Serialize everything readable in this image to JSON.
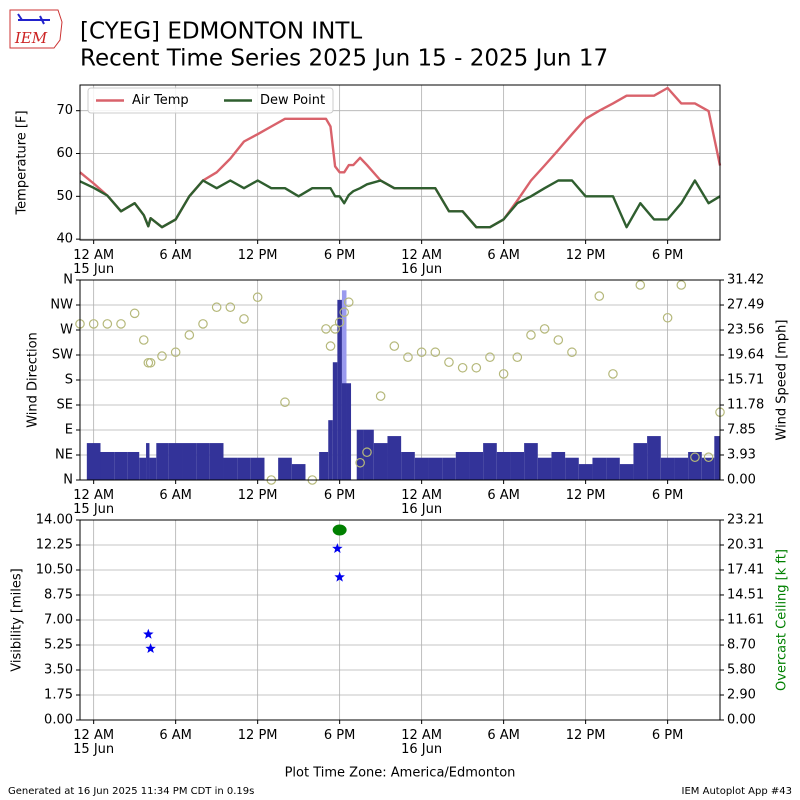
{
  "logo": "IEM",
  "title": "[CYEG] EDMONTON INTL",
  "subtitle": "Recent Time Series 2025 Jun 15 - 2025 Jun 17",
  "xlabel": "Plot Time Zone: America/Edmonton",
  "footer_left": "Generated at 16 Jun 2025 11:34 PM CDT in 0.19s",
  "footer_right": "IEM Autoplot App #43",
  "chart_data": [
    {
      "type": "line",
      "ylabel": "Temperature [F]",
      "grid": true,
      "legend": "upper left",
      "xlim": [
        "2025-06-14 23:00",
        "2025-06-16 21:50"
      ],
      "xticks": [
        {
          "value": "2025-06-15 00:00",
          "label": "12 AM\n15 Jun"
        },
        {
          "value": "2025-06-15 06:00",
          "label": "6 AM"
        },
        {
          "value": "2025-06-15 12:00",
          "label": "12 PM"
        },
        {
          "value": "2025-06-15 18:00",
          "label": "6 PM"
        },
        {
          "value": "2025-06-16 00:00",
          "label": "12 AM\n16 Jun"
        },
        {
          "value": "2025-06-16 06:00",
          "label": "6 AM"
        },
        {
          "value": "2025-06-16 12:00",
          "label": "12 PM"
        },
        {
          "value": "2025-06-16 18:00",
          "label": "6 PM"
        }
      ],
      "ylim": [
        39.8,
        76.0
      ],
      "yticks": [
        40,
        50,
        60,
        70
      ],
      "x": [
        "2025-06-14 23:00",
        "2025-06-15 00:00",
        "2025-06-15 01:00",
        "2025-06-15 02:00",
        "2025-06-15 03:00",
        "2025-06-15 03:40",
        "2025-06-15 04:00",
        "2025-06-15 04:10",
        "2025-06-15 05:00",
        "2025-06-15 06:00",
        "2025-06-15 07:00",
        "2025-06-15 08:00",
        "2025-06-15 09:00",
        "2025-06-15 10:00",
        "2025-06-15 11:00",
        "2025-06-15 12:00",
        "2025-06-15 13:00",
        "2025-06-15 14:00",
        "2025-06-15 15:00",
        "2025-06-15 16:00",
        "2025-06-15 17:00",
        "2025-06-15 17:20",
        "2025-06-15 17:40",
        "2025-06-15 18:00",
        "2025-06-15 18:20",
        "2025-06-15 18:40",
        "2025-06-15 19:00",
        "2025-06-15 19:30",
        "2025-06-15 20:00",
        "2025-06-15 21:00",
        "2025-06-15 22:00",
        "2025-06-15 23:00",
        "2025-06-16 00:00",
        "2025-06-16 01:00",
        "2025-06-16 02:00",
        "2025-06-16 03:00",
        "2025-06-16 04:00",
        "2025-06-16 05:00",
        "2025-06-16 06:00",
        "2025-06-16 07:00",
        "2025-06-16 08:00",
        "2025-06-16 09:00",
        "2025-06-16 10:00",
        "2025-06-16 11:00",
        "2025-06-16 12:00",
        "2025-06-16 13:00",
        "2025-06-16 14:00",
        "2025-06-16 15:00",
        "2025-06-16 16:00",
        "2025-06-16 17:00",
        "2025-06-16 18:00",
        "2025-06-16 19:00",
        "2025-06-16 20:00",
        "2025-06-16 21:00",
        "2025-06-16 21:50"
      ],
      "series": [
        {
          "name": "Air Temp",
          "color": "#d9626b",
          "values": [
            55.6,
            53,
            50.2,
            46.5,
            48.4,
            45.6,
            43,
            44.9,
            42.8,
            44.6,
            50,
            53.7,
            55.6,
            58.8,
            62.8,
            64.5,
            66.3,
            68.1,
            68.1,
            68.1,
            68.1,
            66.3,
            57,
            55.6,
            55.6,
            57.3,
            57.3,
            59,
            57.3,
            53.7,
            51.9,
            51.9,
            51.9,
            51.9,
            46.5,
            46.5,
            42.8,
            42.8,
            44.6,
            49,
            53.7,
            57.2,
            60.8,
            64.5,
            68.1,
            70,
            71.7,
            73.5,
            73.5,
            73.5,
            75.3,
            71.7,
            71.7,
            69.9,
            57.2
          ]
        },
        {
          "name": "Dew Point",
          "color": "#2f5e2f",
          "values": [
            53.5,
            52,
            50.2,
            46.5,
            48.4,
            45.6,
            43,
            44.9,
            42.8,
            44.6,
            50,
            53.7,
            51.9,
            53.7,
            51.9,
            53.7,
            51.9,
            51.9,
            50,
            51.9,
            51.9,
            51.9,
            50,
            50,
            48.4,
            50.3,
            51.2,
            51.9,
            52.8,
            53.7,
            51.9,
            51.9,
            51.9,
            51.9,
            46.5,
            46.5,
            42.8,
            42.8,
            44.6,
            48.4,
            50,
            51.9,
            53.7,
            53.7,
            50,
            50,
            50,
            42.8,
            48.4,
            44.6,
            44.6,
            48.4,
            53.7,
            48.4,
            50
          ]
        }
      ]
    },
    {
      "type": "wind",
      "ylabel": "Wind Direction",
      "y2label": "Wind Speed [mph]",
      "grid": true,
      "xlim": [
        "2025-06-14 23:00",
        "2025-06-16 21:50"
      ],
      "xticks": [
        {
          "value": "2025-06-15 00:00",
          "label": "12 AM\n15 Jun"
        },
        {
          "value": "2025-06-15 06:00",
          "label": "6 AM"
        },
        {
          "value": "2025-06-15 12:00",
          "label": "12 PM"
        },
        {
          "value": "2025-06-15 18:00",
          "label": "6 PM"
        },
        {
          "value": "2025-06-16 00:00",
          "label": "12 AM\n16 Jun"
        },
        {
          "value": "2025-06-16 06:00",
          "label": "6 AM"
        },
        {
          "value": "2025-06-16 12:00",
          "label": "12 PM"
        },
        {
          "value": "2025-06-16 18:00",
          "label": "6 PM"
        }
      ],
      "ylim": [
        0,
        360
      ],
      "yticks": [
        {
          "value": 0,
          "label": "N"
        },
        {
          "value": 45,
          "label": "NE"
        },
        {
          "value": 90,
          "label": "E"
        },
        {
          "value": 135,
          "label": "SE"
        },
        {
          "value": 180,
          "label": "S"
        },
        {
          "value": 225,
          "label": "SW"
        },
        {
          "value": 270,
          "label": "W"
        },
        {
          "value": 315,
          "label": "NW"
        },
        {
          "value": 360,
          "label": "N"
        }
      ],
      "y2lim": [
        0,
        31.42
      ],
      "y2ticks": [
        {
          "value": 0,
          "label": "0.00"
        },
        3.93,
        7.85,
        11.78,
        15.71,
        19.64,
        23.56,
        27.49,
        31.42
      ],
      "x": [
        "2025-06-14 23:00",
        "2025-06-15 00:00",
        "2025-06-15 01:00",
        "2025-06-15 02:00",
        "2025-06-15 03:00",
        "2025-06-15 03:40",
        "2025-06-15 04:00",
        "2025-06-15 04:10",
        "2025-06-15 05:00",
        "2025-06-15 06:00",
        "2025-06-15 07:00",
        "2025-06-15 08:00",
        "2025-06-15 09:00",
        "2025-06-15 10:00",
        "2025-06-15 11:00",
        "2025-06-15 12:00",
        "2025-06-15 13:00",
        "2025-06-15 14:00",
        "2025-06-15 15:00",
        "2025-06-15 16:00",
        "2025-06-15 17:00",
        "2025-06-15 17:20",
        "2025-06-15 17:40",
        "2025-06-15 18:00",
        "2025-06-15 18:20",
        "2025-06-15 18:40",
        "2025-06-15 19:00",
        "2025-06-15 19:30",
        "2025-06-15 20:00",
        "2025-06-15 21:00",
        "2025-06-15 22:00",
        "2025-06-15 23:00",
        "2025-06-16 00:00",
        "2025-06-16 01:00",
        "2025-06-16 02:00",
        "2025-06-16 03:00",
        "2025-06-16 04:00",
        "2025-06-16 05:00",
        "2025-06-16 06:00",
        "2025-06-16 07:00",
        "2025-06-16 08:00",
        "2025-06-16 09:00",
        "2025-06-16 10:00",
        "2025-06-16 11:00",
        "2025-06-16 12:00",
        "2025-06-16 13:00",
        "2025-06-16 14:00",
        "2025-06-16 15:00",
        "2025-06-16 16:00",
        "2025-06-16 17:00",
        "2025-06-16 18:00",
        "2025-06-16 19:00",
        "2025-06-16 20:00",
        "2025-06-16 21:00",
        "2025-06-16 21:50"
      ],
      "direction": {
        "color": "#b5b87a",
        "values": [
          281,
          281,
          281,
          281,
          300,
          252,
          211,
          211,
          223,
          230,
          261,
          281,
          311,
          311,
          290,
          329,
          0,
          140,
          null,
          0,
          272,
          241,
          272,
          284,
          302,
          320,
          null,
          31,
          50,
          151,
          241,
          221,
          230,
          230,
          212,
          202,
          202,
          221,
          191,
          221,
          261,
          272,
          252,
          230,
          null,
          331,
          191,
          null,
          351,
          null,
          292,
          351,
          41,
          41,
          122
        ]
      },
      "speed": {
        "color": "#333399",
        "values": [
          null,
          5.8,
          4.4,
          4.4,
          4.4,
          3.5,
          5.8,
          3.5,
          5.8,
          5.8,
          5.8,
          5.8,
          5.8,
          3.5,
          3.5,
          3.5,
          0,
          3.5,
          2.5,
          0,
          4.4,
          9.4,
          18.5,
          28.3,
          15.2,
          15.2,
          null,
          7.9,
          7.9,
          5.8,
          6.9,
          4.4,
          3.5,
          3.5,
          3.5,
          4.4,
          4.4,
          5.8,
          4.4,
          4.4,
          5.8,
          3.5,
          4.4,
          3.5,
          2.5,
          3.5,
          3.5,
          2.5,
          5.8,
          6.9,
          3.5,
          3.5,
          4.4,
          3.5,
          6.9
        ]
      },
      "gust": {
        "color": "#9a9aee",
        "values": [
          null,
          null,
          null,
          null,
          null,
          null,
          null,
          null,
          null,
          null,
          null,
          null,
          null,
          null,
          null,
          null,
          null,
          null,
          null,
          null,
          null,
          null,
          null,
          null,
          29.8,
          null,
          null,
          null,
          null,
          null,
          null,
          null,
          null,
          null,
          null,
          null,
          null,
          null,
          null,
          null,
          null,
          null,
          null,
          null,
          null,
          null,
          null,
          null,
          null,
          null,
          null,
          null,
          null,
          null,
          null
        ]
      }
    },
    {
      "type": "scatter",
      "ylabel": "Visibility [miles]",
      "y2label": "Overcast Ceiling [k ft]",
      "y2label_color": "green",
      "grid": true,
      "xlim": [
        "2025-06-14 23:00",
        "2025-06-16 21:50"
      ],
      "xticks": [
        {
          "value": "2025-06-15 00:00",
          "label": "12 AM\n15 Jun"
        },
        {
          "value": "2025-06-15 06:00",
          "label": "6 AM"
        },
        {
          "value": "2025-06-15 12:00",
          "label": "12 PM"
        },
        {
          "value": "2025-06-15 18:00",
          "label": "6 PM"
        },
        {
          "value": "2025-06-16 00:00",
          "label": "12 AM\n16 Jun"
        },
        {
          "value": "2025-06-16 06:00",
          "label": "6 AM"
        },
        {
          "value": "2025-06-16 12:00",
          "label": "12 PM"
        },
        {
          "value": "2025-06-16 18:00",
          "label": "6 PM"
        }
      ],
      "ylim": [
        0,
        14
      ],
      "yticks": [
        {
          "value": 0,
          "label": "0.00"
        },
        1.75,
        {
          "value": 3.5,
          "label": "3.50"
        },
        5.25,
        {
          "value": 7,
          "label": "7.00"
        },
        8.75,
        {
          "value": 10.5,
          "label": "10.50"
        },
        12.25,
        {
          "value": 14,
          "label": "14.00"
        }
      ],
      "y2lim": [
        0,
        23.21
      ],
      "y2ticks": [
        {
          "value": 0,
          "label": "0.00"
        },
        {
          "value": 2.9,
          "label": "2.90"
        },
        {
          "value": 5.8,
          "label": "5.80"
        },
        {
          "value": 8.7,
          "label": "8.70"
        },
        11.61,
        14.51,
        17.41,
        20.31,
        23.21
      ],
      "series": [
        {
          "color": "#0000ee",
          "marker": "star",
          "x": [
            "2025-06-15 04:00",
            "2025-06-15 04:10",
            "2025-06-15 17:50",
            "2025-06-15 18:00"
          ],
          "values": [
            6,
            5,
            12,
            10
          ]
        },
        {
          "color": "#008000",
          "marker": "circle",
          "axis": "y2",
          "x": [
            "2025-06-15 18:00"
          ],
          "values": [
            22.05
          ]
        }
      ]
    }
  ]
}
